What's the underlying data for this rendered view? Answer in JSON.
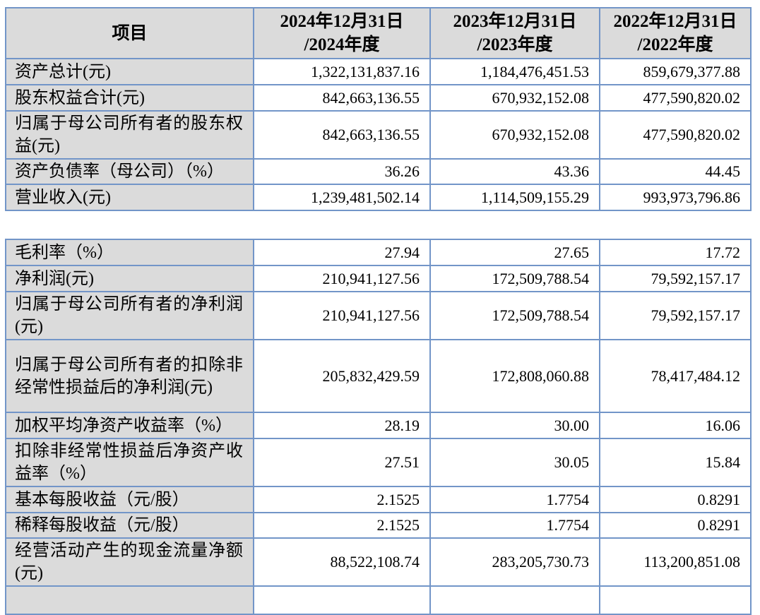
{
  "colors": {
    "border_blue": "#7295c8",
    "cell_gray": "#dbdbdb",
    "background": "#ffffff"
  },
  "financial_summary_table": {
    "header": {
      "item_label": "项目",
      "periods": [
        {
          "line1": "2024年12月31日",
          "line2": "/2024年度"
        },
        {
          "line1": "2023年12月31日",
          "line2": "/2023年度"
        },
        {
          "line1": "2022年12月31日",
          "line2": "/2022年度"
        }
      ]
    },
    "rows": [
      {
        "label": "资产总计(元)",
        "values": [
          "1,322,131,837.16",
          "1,184,476,451.53",
          "859,679,377.88"
        ]
      },
      {
        "label": "股东权益合计(元)",
        "values": [
          "842,663,136.55",
          "670,932,152.08",
          "477,590,820.02"
        ]
      },
      {
        "label": "归属于母公司所有者的股东权益(元)",
        "values": [
          "842,663,136.55",
          "670,932,152.08",
          "477,590,820.02"
        ]
      },
      {
        "label": "资产负债率（母公司）（%）",
        "values": [
          "36.26",
          "43.36",
          "44.45"
        ]
      },
      {
        "label": "营业收入(元)",
        "values": [
          "1,239,481,502.14",
          "1,114,509,155.29",
          "993,973,796.86"
        ]
      }
    ]
  },
  "profitability_table": {
    "rows": [
      {
        "label": "毛利率（%）",
        "values": [
          "27.94",
          "27.65",
          "17.72"
        ]
      },
      {
        "label": "净利润(元)",
        "values": [
          "210,941,127.56",
          "172,509,788.54",
          "79,592,157.17"
        ]
      },
      {
        "label": "归属于母公司所有者的净利润(元)",
        "values": [
          "210,941,127.56",
          "172,509,788.54",
          "79,592,157.17"
        ]
      },
      {
        "label": "归属于母公司所有者的扣除非经常性损益后的净利润(元)",
        "values": [
          "205,832,429.59",
          "172,808,060.88",
          "78,417,484.12"
        ]
      },
      {
        "label": "加权平均净资产收益率（%）",
        "values": [
          "28.19",
          "30.00",
          "16.06"
        ]
      },
      {
        "label": "扣除非经常性损益后净资产收益率（%）",
        "values": [
          "27.51",
          "30.05",
          "15.84"
        ]
      },
      {
        "label": "基本每股收益（元/股）",
        "values": [
          "2.1525",
          "1.7754",
          "0.8291"
        ]
      },
      {
        "label": "稀释每股收益（元/股）",
        "values": [
          "2.1525",
          "1.7754",
          "0.8291"
        ]
      },
      {
        "label": "经营活动产生的现金流量净额(元)",
        "values": [
          "88,522,108.74",
          "283,205,730.73",
          "113,200,851.08"
        ]
      }
    ]
  }
}
